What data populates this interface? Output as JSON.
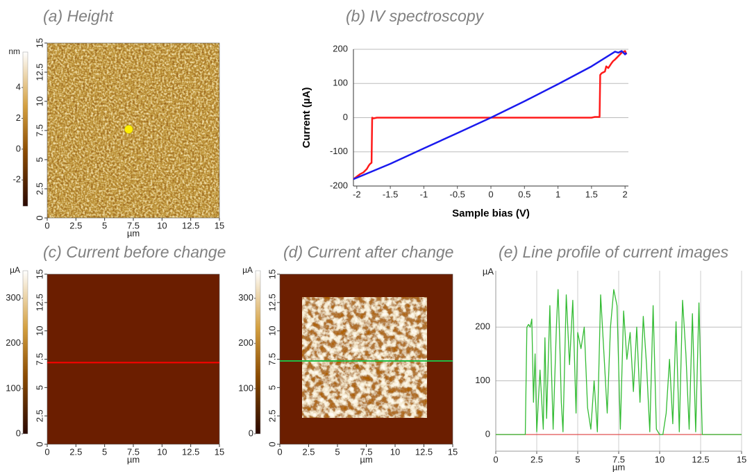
{
  "chart_data": [
    {
      "type": "image",
      "title": "(a) Height",
      "x_label": "µm",
      "xlim": [
        0,
        15
      ],
      "xticks": [
        0,
        2.5,
        5,
        7.5,
        10,
        12.5,
        15
      ],
      "ylim": [
        0,
        15
      ],
      "yticks": [
        0,
        2.5,
        5,
        7.5,
        10,
        12.5,
        15
      ],
      "colorbar": {
        "unit": "nm",
        "lim": [
          -3.7,
          6.3
        ],
        "ticks": [
          -2,
          0,
          2,
          4
        ]
      },
      "marker": {
        "x": 7.1,
        "y": 7.6,
        "color": "#ffee00"
      }
    },
    {
      "type": "line",
      "title": "(b) IV spectroscopy",
      "x_label": "Sample bias (V)",
      "y_label": "Current (µA)",
      "xlim": [
        -2.05,
        2.05
      ],
      "xticks": [
        -2,
        -1.5,
        -1,
        -0.5,
        0,
        0.5,
        1,
        1.5,
        2
      ],
      "ylim": [
        -200,
        200
      ],
      "yticks": [
        -200,
        -100,
        0,
        100,
        200
      ],
      "grid": true,
      "series": [
        {
          "color": "#ff1a1a",
          "x": [
            -2.05,
            -1.95,
            -1.9,
            -1.85,
            -1.82,
            -1.8,
            -1.78,
            -1.77,
            -1.75,
            -1.7,
            0,
            1.5,
            1.55,
            1.62,
            1.63,
            1.65,
            1.7,
            1.72,
            1.75,
            1.8,
            1.82,
            1.85,
            1.9,
            1.95,
            2.0,
            2.02
          ],
          "values": [
            -180,
            -165,
            -160,
            -150,
            -140,
            -135,
            -132,
            0,
            -2,
            0,
            0,
            0,
            2,
            2,
            125,
            130,
            135,
            150,
            145,
            160,
            165,
            170,
            180,
            190,
            195,
            185
          ]
        },
        {
          "color": "#1a1aee",
          "x": [
            -2.05,
            -1.5,
            -1,
            -0.5,
            0,
            0.5,
            1,
            1.5,
            1.85,
            1.9,
            1.95,
            2.0,
            2.02
          ],
          "values": [
            -180,
            -135,
            -90,
            -45,
            0,
            48,
            98,
            150,
            193,
            190,
            195,
            185,
            190
          ]
        }
      ]
    },
    {
      "type": "image",
      "title": "(c) Current before change",
      "x_label": "µm",
      "xlim": [
        0,
        15
      ],
      "xticks": [
        0,
        2.5,
        5,
        7.5,
        10,
        12.5,
        15
      ],
      "ylim": [
        0,
        15
      ],
      "yticks": [
        0,
        2.5,
        5,
        7.5,
        10,
        12.5,
        15
      ],
      "colorbar": {
        "unit": "µA",
        "lim": [
          0,
          361
        ],
        "ticks": [
          0,
          100,
          200,
          300
        ]
      },
      "profile_line": {
        "y": 7.2,
        "color": "#ff0000"
      }
    },
    {
      "type": "image",
      "title": "(d) Current after change",
      "x_label": "µm",
      "xlim": [
        0,
        15
      ],
      "xticks": [
        0,
        2.5,
        5,
        7.5,
        10,
        12.5,
        15
      ],
      "ylim": [
        0,
        15
      ],
      "yticks": [
        0,
        2.5,
        5,
        7.5,
        10,
        12.5,
        15
      ],
      "colorbar": {
        "unit": "µA",
        "lim": [
          0,
          361
        ],
        "ticks": [
          0,
          100,
          200,
          300
        ]
      },
      "profile_line": {
        "y": 7.35,
        "color": "#22bb44"
      }
    },
    {
      "type": "line",
      "title": "(e) Line profile of current images",
      "x_label": "µm",
      "y_label": "µA",
      "xlim": [
        0,
        15
      ],
      "xticks": [
        0,
        2.5,
        5,
        7.5,
        10,
        12.5,
        15
      ],
      "ylim": [
        -31,
        305
      ],
      "yticks": [
        0,
        100,
        200
      ],
      "grid": true,
      "series": [
        {
          "color": "#e05050",
          "x": [
            0,
            15
          ],
          "values": [
            0,
            0
          ]
        },
        {
          "color": "#33bb33",
          "x": [
            0,
            1.8,
            1.9,
            2.0,
            2.1,
            2.2,
            2.3,
            2.4,
            2.5,
            2.7,
            2.9,
            3.0,
            3.1,
            3.3,
            3.4,
            3.5,
            3.7,
            3.8,
            3.9,
            4.0,
            4.1,
            4.3,
            4.5,
            4.7,
            4.9,
            5.0,
            5.2,
            5.4,
            5.6,
            5.8,
            6.0,
            6.2,
            6.4,
            6.6,
            6.8,
            7.0,
            7.2,
            7.4,
            7.6,
            7.8,
            8.0,
            8.2,
            8.4,
            8.6,
            8.8,
            9.0,
            9.2,
            9.4,
            9.6,
            9.8,
            10.0,
            10.2,
            10.4,
            10.6,
            10.8,
            11.0,
            11.2,
            11.4,
            11.6,
            11.8,
            12.0,
            12.2,
            12.4,
            12.5,
            12.6,
            15
          ],
          "values": [
            0,
            0,
            200,
            205,
            200,
            215,
            60,
            150,
            5,
            120,
            10,
            180,
            30,
            240,
            120,
            10,
            200,
            270,
            180,
            60,
            5,
            260,
            130,
            250,
            40,
            190,
            160,
            200,
            50,
            10,
            100,
            5,
            260,
            150,
            40,
            200,
            270,
            240,
            10,
            230,
            140,
            190,
            80,
            200,
            60,
            220,
            130,
            5,
            240,
            10,
            0,
            0,
            40,
            140,
            20,
            210,
            5,
            250,
            150,
            10,
            225,
            5,
            245,
            120,
            0,
            0
          ]
        }
      ]
    }
  ]
}
